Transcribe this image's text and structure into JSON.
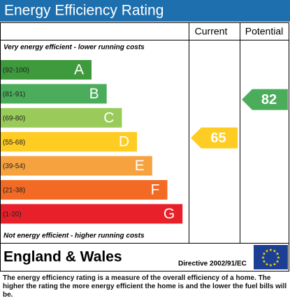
{
  "header": {
    "title": "Energy Efficiency Rating"
  },
  "columns": {
    "current": "Current",
    "potential": "Potential"
  },
  "top_note": "Very energy efficient - lower running costs",
  "bottom_note": "Not energy efficient - higher running costs",
  "bands": [
    {
      "range": "(92-100)",
      "letter": "A",
      "color": "#3e9a3c"
    },
    {
      "range": "(81-91)",
      "letter": "B",
      "color": "#4bad5b"
    },
    {
      "range": "(69-80)",
      "letter": "C",
      "color": "#9acb5a"
    },
    {
      "range": "(55-68)",
      "letter": "D",
      "color": "#fecc23"
    },
    {
      "range": "(39-54)",
      "letter": "E",
      "color": "#f6a33f"
    },
    {
      "range": "(21-38)",
      "letter": "F",
      "color": "#f26a24"
    },
    {
      "range": "(1-20)",
      "letter": "G",
      "color": "#e8202a"
    }
  ],
  "current": {
    "value": 65,
    "color": "#fecc23"
  },
  "potential": {
    "value": 82,
    "color": "#4bad5b"
  },
  "region": "England & Wales",
  "directive": "Directive 2002/91/EC",
  "footer": "The energy efficiency rating is a measure of the overall efficiency of a home. The higher the rating the more energy efficient the home is and the lower the fuel bills will be."
}
